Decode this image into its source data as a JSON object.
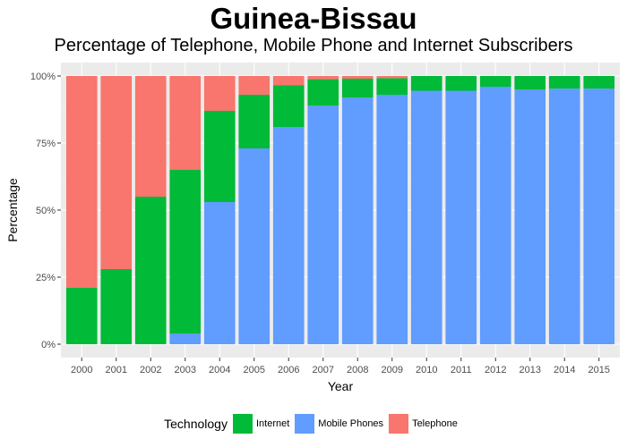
{
  "chart_data": {
    "type": "bar",
    "stacked": "percent",
    "title": "Guinea-Bissau",
    "subtitle": "Percentage of Telephone, Mobile Phone and Internet Subscribers",
    "xlabel": "Year",
    "ylabel": "Percentage",
    "ylim": [
      0,
      100
    ],
    "yticks": [
      "0%",
      "25%",
      "50%",
      "75%",
      "100%"
    ],
    "yticks_values": [
      0,
      25,
      50,
      75,
      100
    ],
    "categories": [
      "2000",
      "2001",
      "2002",
      "2003",
      "2004",
      "2005",
      "2006",
      "2007",
      "2008",
      "2009",
      "2010",
      "2011",
      "2012",
      "2013",
      "2014",
      "2015"
    ],
    "series": [
      {
        "name": "Mobile Phones",
        "color": "#619CFF",
        "values": [
          0,
          0,
          0,
          4,
          53,
          73,
          81,
          89,
          92,
          93,
          94.5,
          94.5,
          96,
          95,
          95.3,
          95.3
        ]
      },
      {
        "name": "Internet",
        "color": "#00BA38",
        "values": [
          21,
          28,
          55,
          61,
          34,
          20,
          15.5,
          9.8,
          7,
          6.2,
          5.5,
          5.5,
          4,
          5,
          4.7,
          4.7
        ]
      },
      {
        "name": "Telephone",
        "color": "#F8766D",
        "values": [
          79,
          72,
          45,
          35,
          13,
          7,
          3.5,
          1.2,
          1,
          0.8,
          0,
          0,
          0,
          0,
          0,
          0
        ]
      }
    ],
    "grid": true,
    "legend_position": "bottom",
    "legend": {
      "title": "Technology",
      "items": [
        {
          "label": "Internet",
          "color": "#00BA38"
        },
        {
          "label": "Mobile Phones",
          "color": "#619CFF"
        },
        {
          "label": "Telephone",
          "color": "#F8766D"
        }
      ]
    }
  }
}
